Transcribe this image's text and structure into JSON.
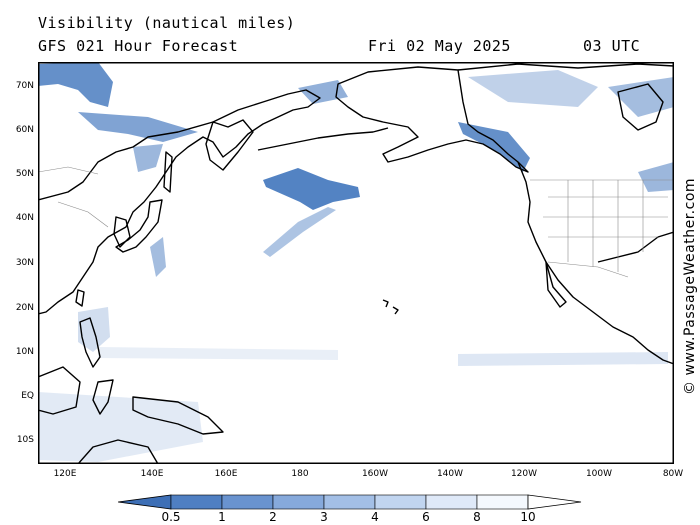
{
  "header": {
    "title": "Visibility (nautical miles)",
    "model": "GFS 021 Hour Forecast",
    "date": "Fri 02 May 2025",
    "time": "03 UTC"
  },
  "credit": "© www.PassageWeather.com",
  "map": {
    "lon_range": [
      110,
      280
    ],
    "lat_range": [
      -15,
      75
    ],
    "lat_labels": [
      "70N",
      "60N",
      "50N",
      "40N",
      "30N",
      "20N",
      "10N",
      "EQ",
      "10S"
    ],
    "lon_labels": [
      "120E",
      "140E",
      "160E",
      "180",
      "160W",
      "140W",
      "120W",
      "100W",
      "80W"
    ]
  },
  "legend": {
    "labels": [
      "0.5",
      "1",
      "2",
      "3",
      "4",
      "6",
      "8",
      "10"
    ],
    "colors": [
      "#3d6fb6",
      "#4f7fc2",
      "#6993cf",
      "#86a9db",
      "#a3bfe6",
      "#c1d5f0",
      "#dfe9f8",
      "#f4f8fd",
      "#ffffff"
    ]
  }
}
